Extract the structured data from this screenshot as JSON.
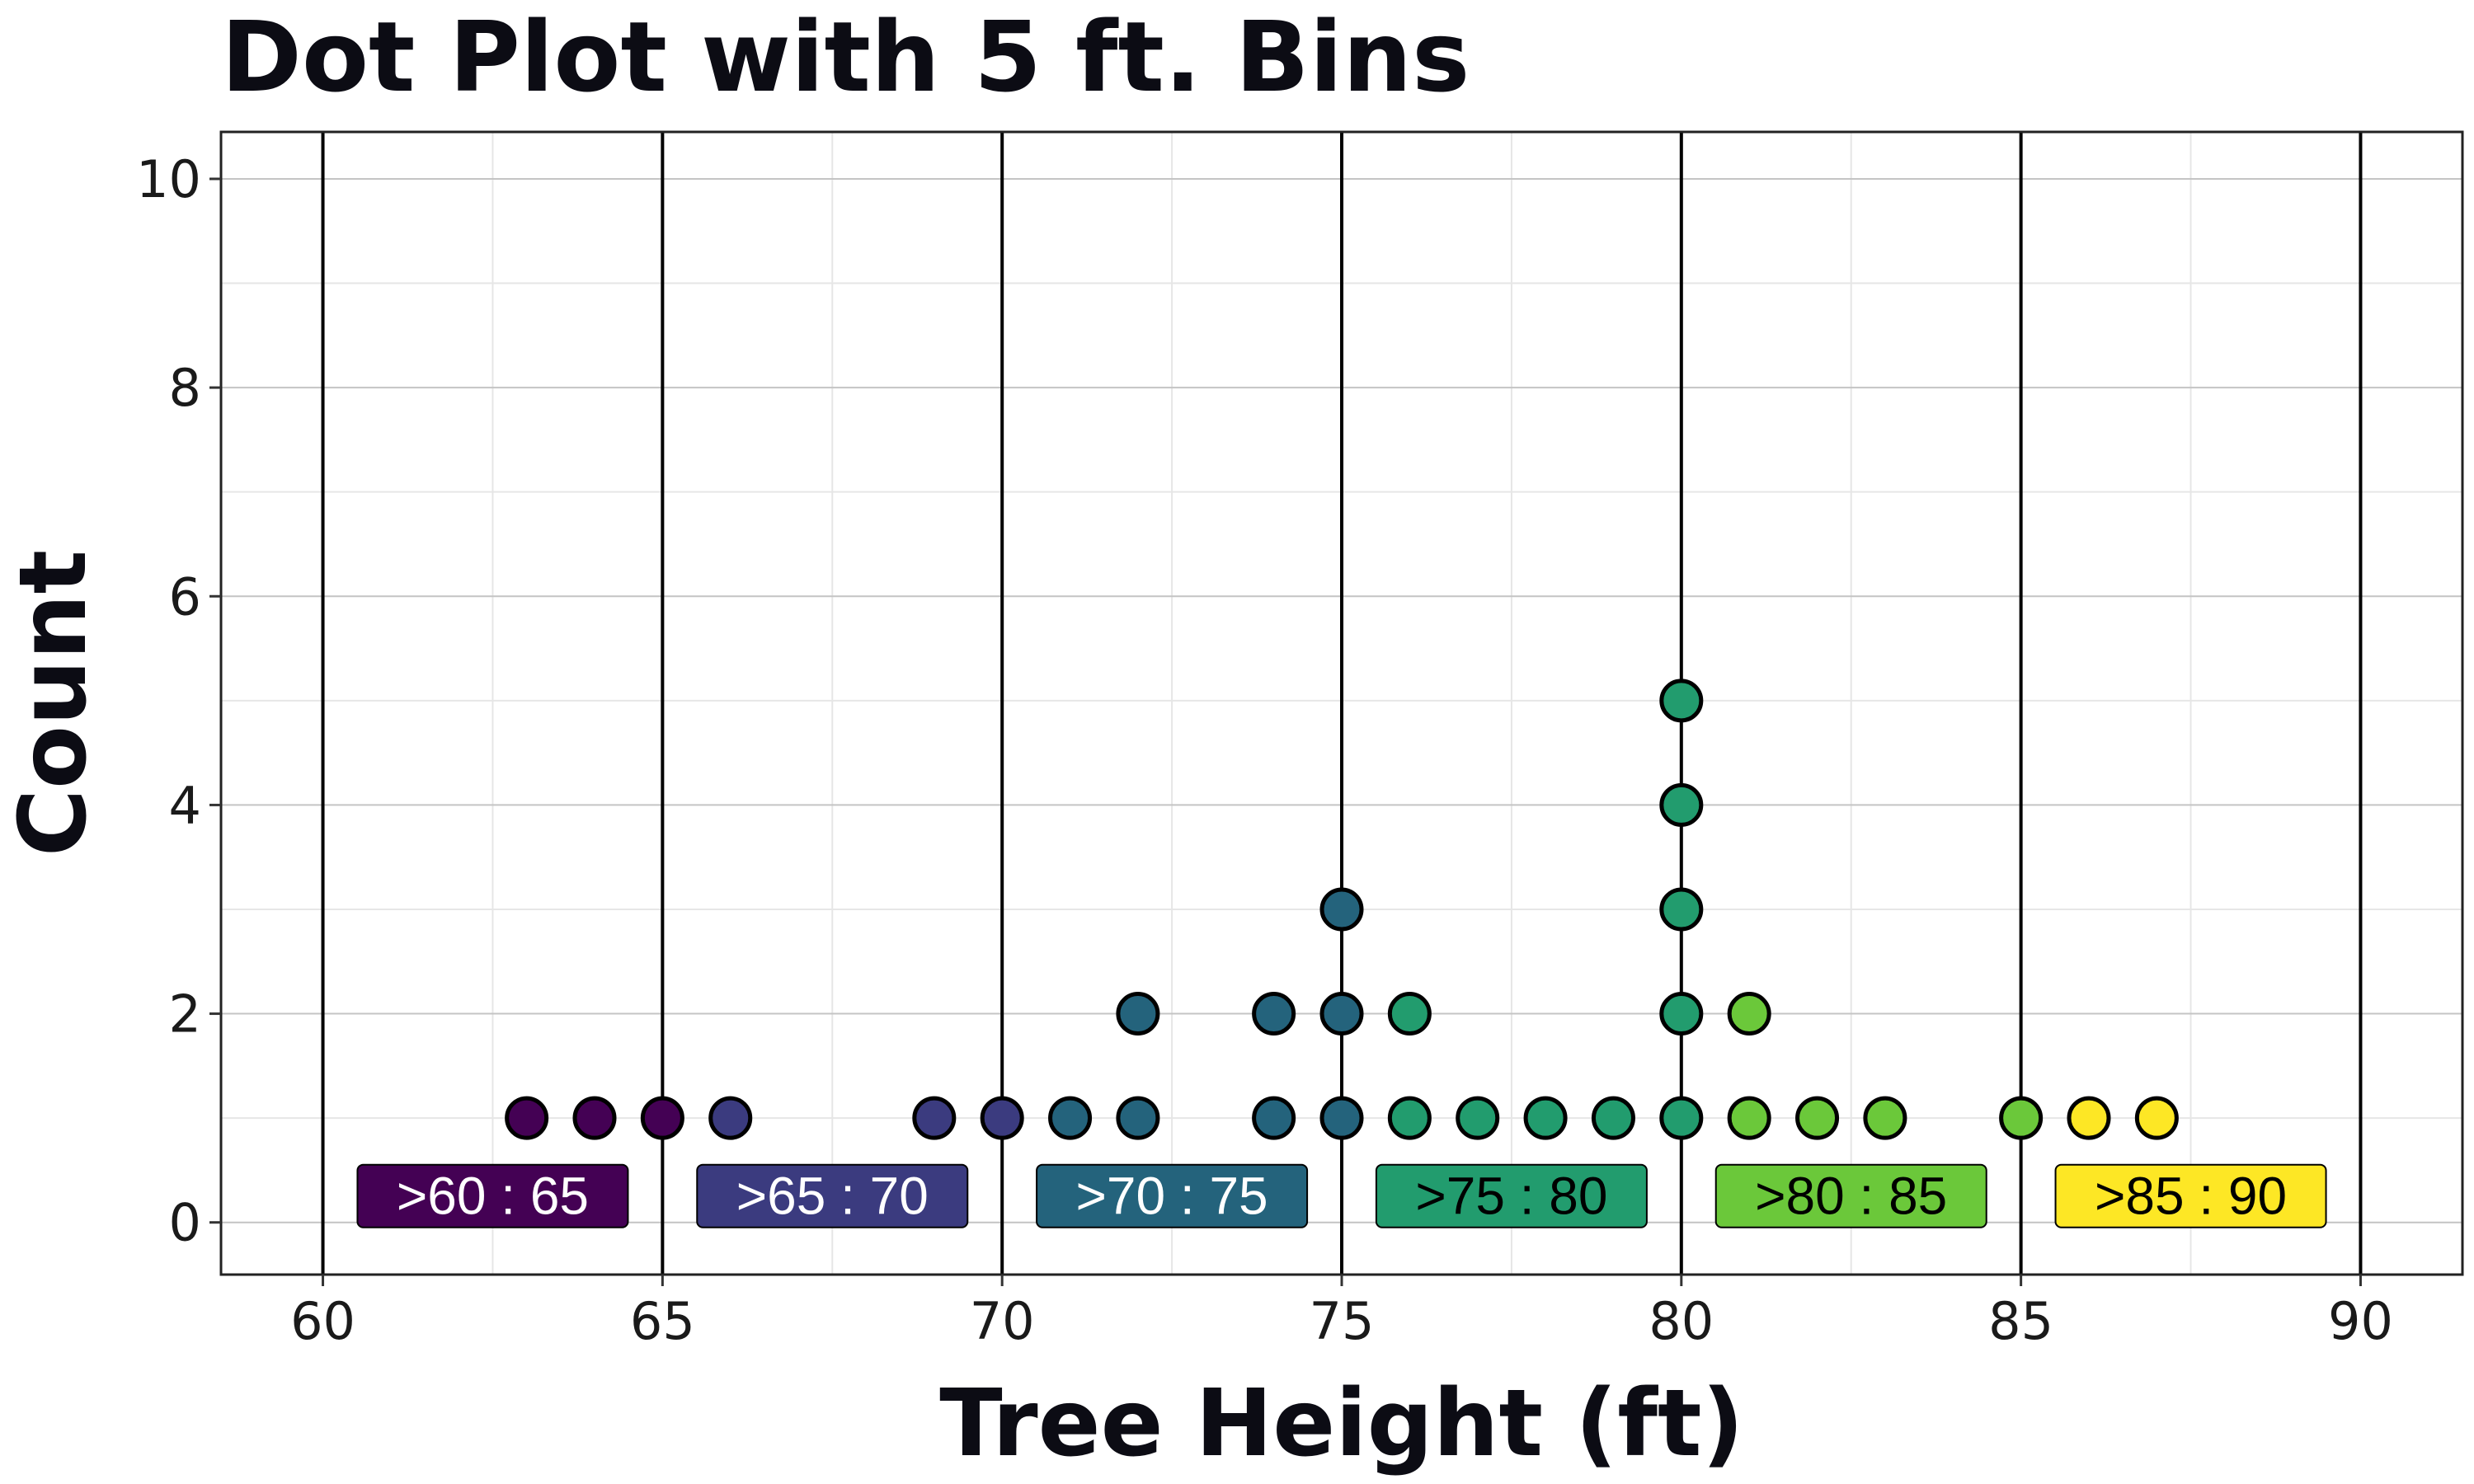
{
  "chart_data": {
    "type": "scatter",
    "subtype": "dot plot",
    "title": "Dot Plot with 5 ft. Bins",
    "xlabel": "Tree Height (ft)",
    "ylabel": "Count",
    "xlim": [
      58.5,
      91.5
    ],
    "ylim": [
      -0.5,
      10.45
    ],
    "xticks": [
      60,
      65,
      70,
      75,
      80,
      85,
      90
    ],
    "yticks": [
      0,
      2,
      4,
      6,
      8,
      10
    ],
    "x_tick_labels": [
      "60",
      "65",
      "70",
      "75",
      "80",
      "85",
      "90"
    ],
    "y_tick_labels": [
      "0",
      "2",
      "4",
      "6",
      "8",
      "10"
    ],
    "grid": true,
    "bin_edges": [
      60,
      65,
      70,
      75,
      80,
      85,
      90
    ],
    "bins": [
      {
        "label": ">60 : 65",
        "color": "#440154",
        "text_color": "#ffffff"
      },
      {
        "label": ">65 : 70",
        "color": "#3b3b7f",
        "text_color": "#ffffff"
      },
      {
        "label": ">70 : 75",
        "color": "#24637c",
        "text_color": "#ffffff"
      },
      {
        "label": ">75 : 80",
        "color": "#229c6e",
        "text_color": "#000000"
      },
      {
        "label": ">80 : 85",
        "color": "#6bc83a",
        "text_color": "#000000"
      },
      {
        "label": ">85 : 90",
        "color": "#fde725",
        "text_color": "#000000"
      }
    ],
    "points": [
      {
        "x": 63,
        "count": 1,
        "bin": 0
      },
      {
        "x": 64,
        "count": 1,
        "bin": 0
      },
      {
        "x": 65,
        "count": 1,
        "bin": 0
      },
      {
        "x": 66,
        "count": 1,
        "bin": 1
      },
      {
        "x": 69,
        "count": 1,
        "bin": 1
      },
      {
        "x": 70,
        "count": 1,
        "bin": 1
      },
      {
        "x": 71,
        "count": 1,
        "bin": 2
      },
      {
        "x": 72,
        "count": 1,
        "bin": 2
      },
      {
        "x": 72,
        "count": 2,
        "bin": 2
      },
      {
        "x": 74,
        "count": 1,
        "bin": 2
      },
      {
        "x": 74,
        "count": 2,
        "bin": 2
      },
      {
        "x": 75,
        "count": 1,
        "bin": 2
      },
      {
        "x": 75,
        "count": 2,
        "bin": 2
      },
      {
        "x": 75,
        "count": 3,
        "bin": 2
      },
      {
        "x": 76,
        "count": 1,
        "bin": 3
      },
      {
        "x": 76,
        "count": 2,
        "bin": 3
      },
      {
        "x": 77,
        "count": 1,
        "bin": 3
      },
      {
        "x": 78,
        "count": 1,
        "bin": 3
      },
      {
        "x": 79,
        "count": 1,
        "bin": 3
      },
      {
        "x": 80,
        "count": 1,
        "bin": 3
      },
      {
        "x": 80,
        "count": 2,
        "bin": 3
      },
      {
        "x": 80,
        "count": 3,
        "bin": 3
      },
      {
        "x": 80,
        "count": 4,
        "bin": 3
      },
      {
        "x": 80,
        "count": 5,
        "bin": 3
      },
      {
        "x": 81,
        "count": 1,
        "bin": 4
      },
      {
        "x": 81,
        "count": 2,
        "bin": 4
      },
      {
        "x": 82,
        "count": 1,
        "bin": 4
      },
      {
        "x": 83,
        "count": 1,
        "bin": 4
      },
      {
        "x": 85,
        "count": 1,
        "bin": 4
      },
      {
        "x": 86,
        "count": 1,
        "bin": 5
      },
      {
        "x": 87,
        "count": 1,
        "bin": 5
      }
    ]
  }
}
